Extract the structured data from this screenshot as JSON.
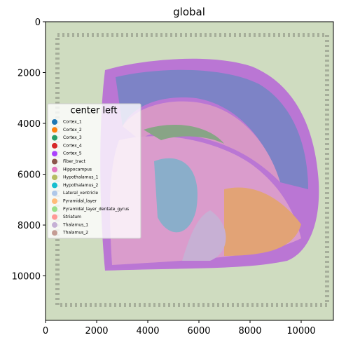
{
  "chart_data": {
    "type": "scatter",
    "title": "global",
    "xlim": [
      0,
      11260
    ],
    "ylim": [
      11750,
      0
    ],
    "y_inverted": true,
    "xticks": [
      0,
      2000,
      4000,
      6000,
      8000,
      10000
    ],
    "yticks": [
      0,
      2000,
      4000,
      6000,
      8000,
      10000
    ],
    "legend_title": "center left",
    "series": [
      {
        "name": "Cortex_1",
        "color": "#1f77b4"
      },
      {
        "name": "Cortex_2",
        "color": "#ff7f0e"
      },
      {
        "name": "Cortex_3",
        "color": "#279e68"
      },
      {
        "name": "Cortex_4",
        "color": "#d62728"
      },
      {
        "name": "Cortex_5",
        "color": "#aa40fc"
      },
      {
        "name": "Fiber_tract",
        "color": "#8c564b"
      },
      {
        "name": "Hippocampus",
        "color": "#e377c2"
      },
      {
        "name": "Hypothalamus_1",
        "color": "#b5bd61"
      },
      {
        "name": "Hypothalamus_2",
        "color": "#17becf"
      },
      {
        "name": "Lateral_ventricle",
        "color": "#aec7e8"
      },
      {
        "name": "Pyramidal_layer",
        "color": "#ffbb78"
      },
      {
        "name": "Pyramidal_layer_dentate_gyrus",
        "color": "#98df8a"
      },
      {
        "name": "Striatum",
        "color": "#ff9896"
      },
      {
        "name": "Thalamus_1",
        "color": "#c5b0d5"
      },
      {
        "name": "Thalamus_2",
        "color": "#c49c94"
      }
    ]
  }
}
